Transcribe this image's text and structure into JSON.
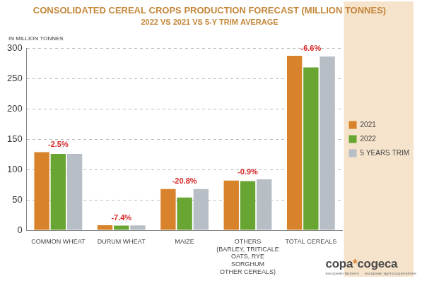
{
  "chart_data": {
    "type": "bar",
    "title": "CONSOLIDATED CEREAL CROPS PRODUCTION FORECAST (MILLION TONNES)",
    "subtitle": "2022 VS 2021 VS 5-Y TRIM AVERAGE",
    "y_label": "IN MILLION TONNES",
    "categories": [
      "COMMON WHEAT",
      "DURUM WHEAT",
      "MAIZE",
      "OTHERS\n(BARLEY, TRITICALE\nOATS, RYE\nSORGHUM\nOTHER CEREALS)",
      "TOTAL CEREALS"
    ],
    "series": [
      {
        "name": "2021",
        "color": "#d8832b",
        "values": [
          129,
          8.2,
          68,
          82,
          288
        ]
      },
      {
        "name": "2022",
        "color": "#69a532",
        "values": [
          126,
          7.6,
          54,
          81,
          269
        ]
      },
      {
        "name": "5 YEARS TRIM",
        "color": "#b8bec6",
        "values": [
          126,
          8,
          68,
          84,
          287
        ]
      }
    ],
    "annotations": [
      "-2.5%",
      "-7.4%",
      "-20.8%",
      "-0.9%",
      "-6.6%"
    ],
    "ylim": [
      0,
      300
    ],
    "yticks": [
      0,
      50,
      100,
      150,
      200,
      250,
      300
    ],
    "grid": true,
    "legend": "right",
    "logo": {
      "name": "copa*cogeca",
      "captions": [
        "european farmers",
        "european agri-cooperatives"
      ]
    }
  }
}
